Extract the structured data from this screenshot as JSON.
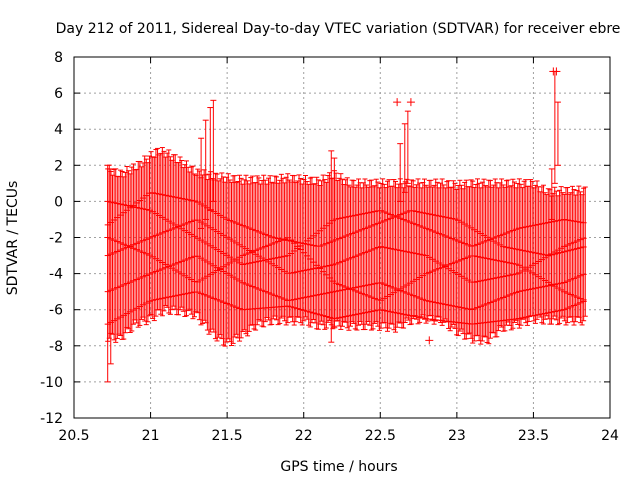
{
  "chart_data": {
    "type": "scatter",
    "title": "Day 212 of 2011, Sidereal Day-to-day VTEC variation (SDTVAR) for receiver ebre",
    "xlabel": "GPS time / hours",
    "ylabel": "SDTVAR / TECUs",
    "xlim": [
      20.5,
      24
    ],
    "ylim": [
      -12,
      8
    ],
    "xticks": [
      20.5,
      21,
      21.5,
      22,
      22.5,
      23,
      23.5,
      24
    ],
    "yticks": [
      -12,
      -10,
      -8,
      -6,
      -4,
      -2,
      0,
      2,
      4,
      6,
      8
    ],
    "xtick_labels": [
      "20.5",
      "21",
      "21.5",
      "22",
      "22.5",
      "23",
      "23.5",
      "24"
    ],
    "ytick_labels": [
      "-12",
      "-10",
      "-8",
      "-6",
      "-4",
      "-2",
      "0",
      "2",
      "4",
      "6",
      "8"
    ],
    "grid": true,
    "series_color": "#ff0000",
    "marker": "+",
    "x_range_data": [
      20.72,
      23.84
    ],
    "band": {
      "x": [
        20.72,
        20.8,
        20.9,
        21.0,
        21.05,
        21.1,
        21.2,
        21.3,
        21.4,
        21.5,
        21.6,
        21.7,
        21.8,
        21.9,
        22.0,
        22.1,
        22.2,
        22.3,
        22.4,
        22.5,
        22.6,
        22.7,
        22.8,
        22.9,
        23.0,
        23.1,
        23.2,
        23.3,
        23.4,
        23.5,
        23.6,
        23.7,
        23.84
      ],
      "upper": [
        1.8,
        1.5,
        1.9,
        2.5,
        2.8,
        2.7,
        2.2,
        1.6,
        1.4,
        1.3,
        1.2,
        1.2,
        1.2,
        1.3,
        1.2,
        1.1,
        1.5,
        1.0,
        1.0,
        1.0,
        1.0,
        1.0,
        1.0,
        1.0,
        0.9,
        1.0,
        1.0,
        1.0,
        1.0,
        1.0,
        0.5,
        0.6,
        0.6
      ],
      "lower": [
        -7.5,
        -7.6,
        -6.8,
        -6.5,
        -6.2,
        -6.0,
        -6.1,
        -6.3,
        -7.3,
        -7.9,
        -7.4,
        -6.8,
        -6.6,
        -6.6,
        -6.6,
        -6.9,
        -6.8,
        -6.9,
        -6.9,
        -6.9,
        -7.0,
        -6.6,
        -6.5,
        -6.6,
        -7.2,
        -7.6,
        -7.7,
        -7.0,
        -6.8,
        -6.5,
        -6.6,
        -6.6,
        -6.6
      ]
    },
    "tracks": [
      {
        "x": [
          20.72,
          21.0,
          21.3,
          21.5,
          21.8,
          22.1,
          22.4,
          22.7,
          23.0,
          23.3,
          23.6,
          23.84
        ],
        "y": [
          -1.3,
          0.5,
          0.0,
          -1.0,
          -2.0,
          -2.5,
          -1.5,
          -0.5,
          -1.0,
          -2.5,
          -3.0,
          -2.5
        ]
      },
      {
        "x": [
          20.72,
          21.0,
          21.3,
          21.6,
          21.9,
          22.2,
          22.5,
          22.8,
          23.1,
          23.4,
          23.7,
          23.84
        ],
        "y": [
          -3.0,
          -2.0,
          -1.0,
          -2.5,
          -4.0,
          -3.5,
          -2.5,
          -3.0,
          -4.5,
          -4.0,
          -2.5,
          -2.0
        ]
      },
      {
        "x": [
          20.72,
          21.0,
          21.3,
          21.6,
          21.9,
          22.2,
          22.5,
          22.8,
          23.1,
          23.4,
          23.7,
          23.84
        ],
        "y": [
          -5.0,
          -4.0,
          -3.0,
          -4.5,
          -5.5,
          -5.0,
          -4.5,
          -5.5,
          -6.0,
          -5.0,
          -4.5,
          -4.0
        ]
      },
      {
        "x": [
          20.72,
          21.0,
          21.3,
          21.6,
          21.9,
          22.2,
          22.5,
          22.8,
          23.1,
          23.4,
          23.7,
          23.84
        ],
        "y": [
          -6.8,
          -5.5,
          -5.0,
          -6.0,
          -5.8,
          -6.5,
          -6.0,
          -6.5,
          -6.8,
          -6.5,
          -6.0,
          -5.5
        ]
      },
      {
        "x": [
          20.72,
          21.0,
          21.3,
          21.6,
          21.9,
          22.2,
          22.5,
          22.8,
          23.1,
          23.4,
          23.7,
          23.84
        ],
        "y": [
          0.0,
          -0.5,
          -2.0,
          -3.5,
          -3.0,
          -1.0,
          -0.5,
          -1.5,
          -2.5,
          -1.5,
          -1.0,
          -1.2
        ]
      },
      {
        "x": [
          20.72,
          21.0,
          21.3,
          21.6,
          21.9,
          22.2,
          22.5,
          22.8,
          23.1,
          23.4,
          23.7,
          23.84
        ],
        "y": [
          -2.0,
          -3.0,
          -4.5,
          -3.0,
          -2.0,
          -4.5,
          -5.5,
          -4.0,
          -3.0,
          -3.5,
          -5.0,
          -5.5
        ]
      }
    ],
    "spikes": [
      {
        "x": 20.72,
        "y_low": -10.0,
        "y_high": 2.0
      },
      {
        "x": 20.74,
        "y_low": -9.0,
        "y_high": 1.8
      },
      {
        "x": 21.33,
        "y_low": -1.5,
        "y_high": 3.5
      },
      {
        "x": 21.36,
        "y_low": -1.0,
        "y_high": 4.5
      },
      {
        "x": 21.39,
        "y_low": -0.5,
        "y_high": 5.2
      },
      {
        "x": 21.41,
        "y_low": 0.0,
        "y_high": 5.6
      },
      {
        "x": 22.18,
        "y_low": -7.8,
        "y_high": 2.8
      },
      {
        "x": 22.2,
        "y_low": -7.0,
        "y_high": 2.4
      },
      {
        "x": 22.63,
        "y_low": 0.0,
        "y_high": 3.2
      },
      {
        "x": 22.66,
        "y_low": 0.5,
        "y_high": 4.3
      },
      {
        "x": 22.68,
        "y_low": 1.0,
        "y_high": 5.0
      },
      {
        "x": 23.62,
        "y_low": -1.0,
        "y_high": 1.8
      },
      {
        "x": 23.64,
        "y_low": 1.0,
        "y_high": 7.2
      },
      {
        "x": 23.66,
        "y_low": 2.0,
        "y_high": 5.5
      }
    ],
    "outliers": [
      {
        "x": 22.61,
        "y": 5.5
      },
      {
        "x": 22.7,
        "y": 5.5
      },
      {
        "x": 22.82,
        "y": -7.7
      },
      {
        "x": 23.63,
        "y": 7.2
      },
      {
        "x": 23.65,
        "y": 7.2
      }
    ]
  }
}
